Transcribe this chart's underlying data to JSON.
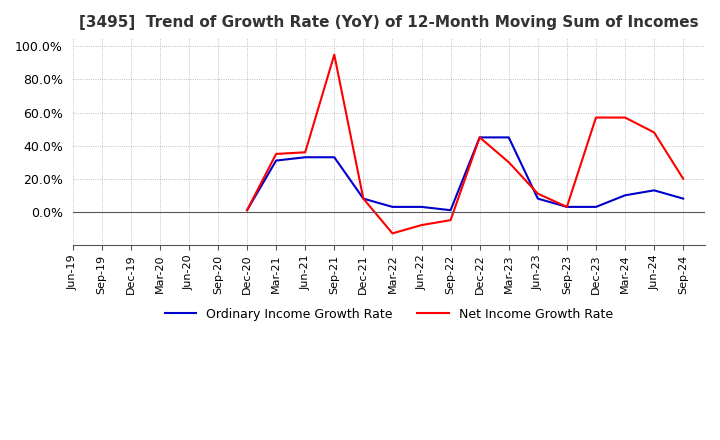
{
  "title": "[3495]  Trend of Growth Rate (YoY) of 12-Month Moving Sum of Incomes",
  "title_fontsize": 11,
  "ylim": [
    -20,
    105
  ],
  "yticks": [
    0.0,
    20.0,
    40.0,
    60.0,
    80.0,
    100.0
  ],
  "background_color": "#ffffff",
  "grid_color": "#aaaaaa",
  "legend_labels": [
    "Ordinary Income Growth Rate",
    "Net Income Growth Rate"
  ],
  "legend_colors": [
    "#0000cc",
    "#ff0000"
  ],
  "x_labels": [
    "Jun-19",
    "Sep-19",
    "Dec-19",
    "Mar-20",
    "Jun-20",
    "Sep-20",
    "Dec-20",
    "Mar-21",
    "Jun-21",
    "Sep-21",
    "Dec-21",
    "Mar-22",
    "Jun-22",
    "Sep-22",
    "Dec-22",
    "Mar-23",
    "Jun-23",
    "Sep-23",
    "Dec-23",
    "Mar-24",
    "Jun-24",
    "Sep-24"
  ],
  "ordinary_income": [
    null,
    null,
    null,
    null,
    null,
    null,
    1.0,
    31.0,
    33.0,
    33.0,
    8.0,
    3.0,
    3.0,
    1.0,
    45.0,
    45.0,
    8.0,
    3.0,
    3.0,
    10.0,
    13.0,
    8.0
  ],
  "net_income": [
    null,
    null,
    null,
    null,
    null,
    null,
    1.0,
    35.0,
    36.0,
    95.0,
    8.0,
    -13.0,
    -8.0,
    -5.0,
    45.0,
    30.0,
    11.0,
    3.0,
    57.0,
    57.0,
    48.0,
    20.0
  ]
}
